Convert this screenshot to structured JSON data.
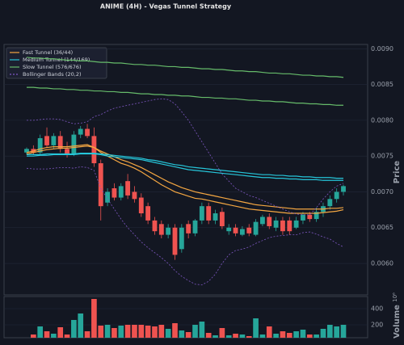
{
  "chart_data": [
    {
      "type": "candlestick",
      "title": "ANIME (4H) - Vegas Tunnel Strategy",
      "y_label": "Price",
      "grid": true,
      "legend": "upper left",
      "up_color": "#26a69a",
      "down_color": "#ef5350",
      "ylim": [
        0.00556,
        0.00906
      ],
      "yticks": [
        {
          "value": 0.006,
          "label": "0.0060"
        },
        0.0065,
        {
          "value": 0.007,
          "label": "0.0070"
        },
        0.0075,
        {
          "value": 0.008,
          "label": "0.0080"
        },
        0.0085,
        {
          "value": 0.009,
          "label": "0.0090"
        }
      ],
      "open": [
        0.00755,
        0.0076,
        0.00755,
        0.00778,
        0.00765,
        0.00778,
        0.0076,
        0.00752,
        0.0078,
        0.00788,
        0.00778,
        0.0074,
        0.00685,
        0.00705,
        0.00692,
        0.00715,
        0.007,
        0.00692,
        0.0068,
        0.0066,
        0.00655,
        0.0064,
        0.0065,
        0.0062,
        0.00655,
        0.00642,
        0.0066,
        0.0068,
        0.0066,
        0.00672,
        0.00645,
        0.0065,
        0.0064,
        0.0065,
        0.0064,
        0.00655,
        0.00665,
        0.0065,
        0.0066,
        0.0066,
        0.0065,
        0.0066,
        0.00668,
        0.00662,
        0.00672,
        0.0068,
        0.0069,
        0.007
      ],
      "high": [
        0.00762,
        0.00765,
        0.0078,
        0.0079,
        0.00782,
        0.00785,
        0.0077,
        0.00785,
        0.00792,
        0.00795,
        0.0079,
        0.00745,
        0.00705,
        0.00712,
        0.00712,
        0.00725,
        0.00708,
        0.00698,
        0.00685,
        0.00665,
        0.0066,
        0.00655,
        0.00655,
        0.00655,
        0.0066,
        0.00662,
        0.00685,
        0.00685,
        0.00675,
        0.00678,
        0.00655,
        0.00655,
        0.00652,
        0.00655,
        0.00662,
        0.00668,
        0.0067,
        0.00665,
        0.00665,
        0.00665,
        0.00665,
        0.00672,
        0.00672,
        0.00678,
        0.00685,
        0.00695,
        0.00705,
        0.0071
      ],
      "low": [
        0.00752,
        0.00752,
        0.00752,
        0.00762,
        0.0076,
        0.00755,
        0.00748,
        0.0075,
        0.00775,
        0.00775,
        0.00735,
        0.0066,
        0.0068,
        0.00688,
        0.00688,
        0.0069,
        0.00685,
        0.00665,
        0.00655,
        0.0064,
        0.00635,
        0.00635,
        0.00605,
        0.00615,
        0.00635,
        0.00638,
        0.00655,
        0.00655,
        0.00655,
        0.00648,
        0.0064,
        0.00638,
        0.00638,
        0.00638,
        0.00638,
        0.00652,
        0.00648,
        0.00645,
        0.0064,
        0.0064,
        0.00648,
        0.00655,
        0.00658,
        0.00658,
        0.00665,
        0.00675,
        0.00685,
        0.00695
      ],
      "close": [
        0.0076,
        0.00755,
        0.00775,
        0.00765,
        0.00778,
        0.0076,
        0.00752,
        0.0078,
        0.00788,
        0.00778,
        0.0074,
        0.0068,
        0.007,
        0.00692,
        0.00708,
        0.00695,
        0.0069,
        0.0067,
        0.0066,
        0.00645,
        0.0064,
        0.0065,
        0.00612,
        0.0065,
        0.00642,
        0.0066,
        0.0068,
        0.0066,
        0.0067,
        0.00652,
        0.0065,
        0.00642,
        0.00648,
        0.00642,
        0.00658,
        0.00665,
        0.00652,
        0.0066,
        0.00645,
        0.00645,
        0.0066,
        0.00668,
        0.00662,
        0.00672,
        0.0068,
        0.0069,
        0.007,
        0.00708
      ],
      "overlays": [
        {
          "name": "Fast Tunnel (36/44)",
          "color": "#f5a742",
          "dashed": false,
          "values": [
            0.00755,
            0.00757,
            0.0076,
            0.00762,
            0.00763,
            0.00763,
            0.00763,
            0.00764,
            0.00765,
            0.00766,
            0.00762,
            0.00755,
            0.0075,
            0.00745,
            0.0074,
            0.00737,
            0.00733,
            0.00728,
            0.00722,
            0.00716,
            0.0071,
            0.00705,
            0.007,
            0.00697,
            0.00694,
            0.00691,
            0.0069,
            0.00688,
            0.00686,
            0.00684,
            0.00682,
            0.0068,
            0.00678,
            0.00676,
            0.00675,
            0.00674,
            0.00673,
            0.00672,
            0.00671,
            0.0067,
            0.0067,
            0.0067,
            0.0067,
            0.0067,
            0.00671,
            0.00672,
            0.00673,
            0.00675
          ],
          "values2": [
            0.00753,
            0.00755,
            0.00757,
            0.00759,
            0.0076,
            0.00761,
            0.00761,
            0.00762,
            0.00763,
            0.00764,
            0.00762,
            0.00757,
            0.00753,
            0.00749,
            0.00745,
            0.00742,
            0.00738,
            0.00734,
            0.00729,
            0.00724,
            0.00719,
            0.00714,
            0.0071,
            0.00706,
            0.00703,
            0.007,
            0.00698,
            0.00696,
            0.00694,
            0.00692,
            0.0069,
            0.00688,
            0.00686,
            0.00684,
            0.00682,
            0.00681,
            0.0068,
            0.00679,
            0.00678,
            0.00677,
            0.00676,
            0.00676,
            0.00676,
            0.00676,
            0.00676,
            0.00677,
            0.00677,
            0.00678
          ]
        },
        {
          "name": "Medium Tunnel (144/169)",
          "color": "#26c6da",
          "dashed": false,
          "values": [
            0.0075,
            0.0075,
            0.00751,
            0.00751,
            0.00752,
            0.00752,
            0.00752,
            0.00752,
            0.00753,
            0.00753,
            0.00753,
            0.00752,
            0.0075,
            0.00749,
            0.00748,
            0.00747,
            0.00746,
            0.00745,
            0.00743,
            0.00741,
            0.00739,
            0.00737,
            0.00735,
            0.00733,
            0.00731,
            0.0073,
            0.00729,
            0.00728,
            0.00727,
            0.00726,
            0.00725,
            0.00724,
            0.00723,
            0.00722,
            0.00721,
            0.0072,
            0.0072,
            0.00719,
            0.00719,
            0.00718,
            0.00718,
            0.00717,
            0.00717,
            0.00717,
            0.00716,
            0.00716,
            0.00716,
            0.00716
          ],
          "values2": [
            0.00752,
            0.00752,
            0.00752,
            0.00753,
            0.00753,
            0.00753,
            0.00753,
            0.00753,
            0.00754,
            0.00754,
            0.00754,
            0.00753,
            0.00752,
            0.00751,
            0.0075,
            0.00749,
            0.00748,
            0.00747,
            0.00745,
            0.00744,
            0.00742,
            0.0074,
            0.00738,
            0.00737,
            0.00735,
            0.00734,
            0.00733,
            0.00732,
            0.00731,
            0.0073,
            0.00729,
            0.00728,
            0.00727,
            0.00726,
            0.00725,
            0.00724,
            0.00724,
            0.00723,
            0.00723,
            0.00722,
            0.00722,
            0.00721,
            0.00721,
            0.0072,
            0.0072,
            0.0072,
            0.00719,
            0.00719
          ]
        },
        {
          "name": "Slow Tunnel (576/676)",
          "color": "#66bb6a",
          "dashed": false,
          "values": [
            0.00888,
            0.00887,
            0.00887,
            0.00886,
            0.00886,
            0.00885,
            0.00884,
            0.00884,
            0.00883,
            0.00883,
            0.00882,
            0.00881,
            0.00881,
            0.0088,
            0.0088,
            0.00879,
            0.00878,
            0.00878,
            0.00877,
            0.00877,
            0.00876,
            0.00875,
            0.00875,
            0.00874,
            0.00874,
            0.00873,
            0.00872,
            0.00872,
            0.00871,
            0.00871,
            0.0087,
            0.00869,
            0.00869,
            0.00868,
            0.00868,
            0.00867,
            0.00866,
            0.00866,
            0.00865,
            0.00865,
            0.00864,
            0.00863,
            0.00863,
            0.00862,
            0.00862,
            0.00861,
            0.00861,
            0.0086
          ],
          "values2": [
            0.00846,
            0.00846,
            0.00845,
            0.00845,
            0.00844,
            0.00844,
            0.00843,
            0.00843,
            0.00842,
            0.00842,
            0.00841,
            0.00841,
            0.0084,
            0.0084,
            0.00839,
            0.00839,
            0.00838,
            0.00837,
            0.00837,
            0.00836,
            0.00836,
            0.00835,
            0.00835,
            0.00834,
            0.00834,
            0.00833,
            0.00832,
            0.00832,
            0.00831,
            0.00831,
            0.0083,
            0.0083,
            0.00829,
            0.00828,
            0.00828,
            0.00827,
            0.00827,
            0.00826,
            0.00826,
            0.00825,
            0.00824,
            0.00824,
            0.00823,
            0.00823,
            0.00822,
            0.00822,
            0.00821,
            0.00821
          ]
        },
        {
          "name": "Bollinger Bands (20,2)",
          "color": "#7e57c2",
          "dashed": true,
          "values": [
            0.008,
            0.008,
            0.00801,
            0.00802,
            0.00802,
            0.00801,
            0.00798,
            0.00795,
            0.00796,
            0.00798,
            0.00805,
            0.00808,
            0.00813,
            0.00817,
            0.00819,
            0.00821,
            0.00823,
            0.00825,
            0.00827,
            0.00829,
            0.0083,
            0.00829,
            0.00823,
            0.00812,
            0.008,
            0.00785,
            0.0077,
            0.00755,
            0.0074,
            0.00725,
            0.00715,
            0.00705,
            0.007,
            0.00695,
            0.00692,
            0.00688,
            0.00684,
            0.0068,
            0.00676,
            0.00672,
            0.00669,
            0.00668,
            0.00668,
            0.00678,
            0.0069,
            0.007,
            0.00708,
            0.00712
          ],
          "values2": [
            0.00733,
            0.00732,
            0.00732,
            0.00732,
            0.00733,
            0.00734,
            0.00734,
            0.00733,
            0.00735,
            0.00734,
            0.0073,
            0.00705,
            0.0069,
            0.00676,
            0.00662,
            0.0065,
            0.0064,
            0.0063,
            0.00622,
            0.00615,
            0.00608,
            0.006,
            0.0059,
            0.00582,
            0.00576,
            0.00571,
            0.0057,
            0.00575,
            0.00585,
            0.006,
            0.00612,
            0.00618,
            0.0062,
            0.00623,
            0.00628,
            0.00632,
            0.00636,
            0.00638,
            0.00639,
            0.0064,
            0.0064,
            0.00643,
            0.00644,
            0.00641,
            0.00637,
            0.00634,
            0.00628,
            0.00623
          ]
        }
      ]
    },
    {
      "type": "bar",
      "y_label": "Volume",
      "y_exponent": "10⁶",
      "grid": true,
      "ylim": [
        40,
        550
      ],
      "yticks": [
        200,
        400
      ],
      "values": [
        40,
        80,
        180,
        120,
        90,
        170,
        80,
        260,
        340,
        120,
        520,
        190,
        200,
        160,
        190,
        200,
        200,
        200,
        190,
        180,
        200,
        150,
        220,
        130,
        110,
        200,
        240,
        100,
        70,
        160,
        70,
        90,
        80,
        60,
        280,
        80,
        180,
        90,
        120,
        100,
        120,
        140,
        80,
        80,
        150,
        200,
        180,
        200
      ]
    }
  ]
}
